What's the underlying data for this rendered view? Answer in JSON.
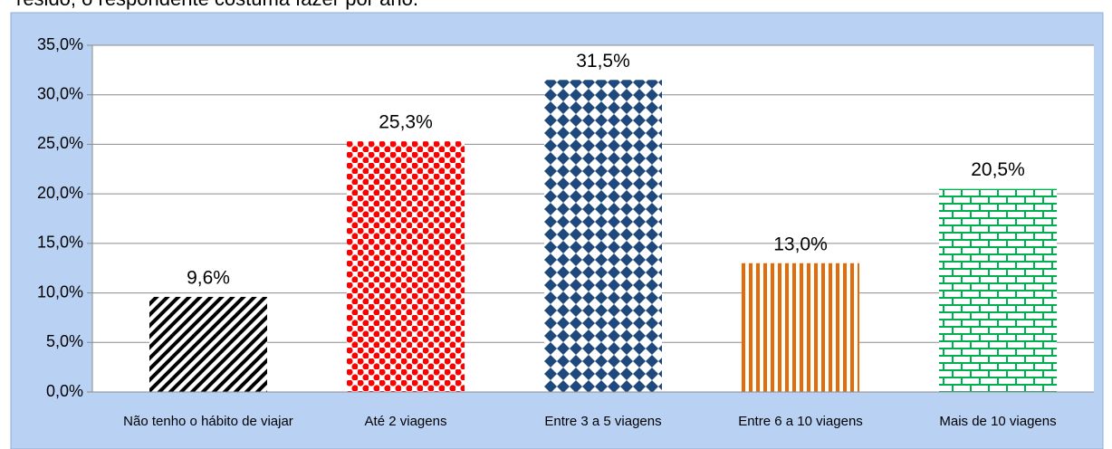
{
  "caption": "resido, o respondente costuma fazer por ano.",
  "chart_data": {
    "type": "bar",
    "categories": [
      "Não tenho o hábito de viajar",
      "Até 2 viagens",
      "Entre 3 a 5 viagens",
      "Entre 6 a 10 viagens",
      "Mais de 10 viagens"
    ],
    "values": [
      9.6,
      25.3,
      31.5,
      13.0,
      20.5
    ],
    "value_labels": [
      "9,6%",
      "25,3%",
      "31,5%",
      "13,0%",
      "20,5%"
    ],
    "colors": [
      "#000000",
      "#ff0000",
      "#1f497d",
      "#e36c09",
      "#00b050"
    ],
    "ylim": [
      0,
      35
    ],
    "yticks": [
      {
        "value": 0,
        "label": "0,0%"
      },
      {
        "value": 5,
        "label": "5,0%"
      },
      {
        "value": 10,
        "label": "10,0%"
      },
      {
        "value": 15,
        "label": "15,0%"
      },
      {
        "value": 20,
        "label": "20,0%"
      },
      {
        "value": 25,
        "label": "25,0%"
      },
      {
        "value": 30,
        "label": "30,0%"
      },
      {
        "value": 35,
        "label": "35,0%"
      }
    ],
    "grid": true
  }
}
